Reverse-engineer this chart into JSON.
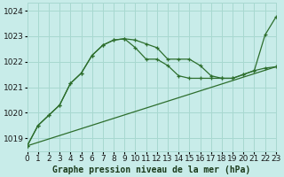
{
  "title": "Graphe pression niveau de la mer (hPa)",
  "bg_color": "#c8ece9",
  "grid_color": "#a8d8d0",
  "line_color": "#2d6e2d",
  "xlim": [
    0,
    23
  ],
  "ylim": [
    1018.5,
    1024.3
  ],
  "yticks": [
    1019,
    1020,
    1021,
    1022,
    1023,
    1024
  ],
  "xticks": [
    0,
    1,
    2,
    3,
    4,
    5,
    6,
    7,
    8,
    9,
    10,
    11,
    12,
    13,
    14,
    15,
    16,
    17,
    18,
    19,
    20,
    21,
    22,
    23
  ],
  "series1_x": [
    0,
    1,
    2,
    3,
    4,
    5,
    6,
    7,
    8,
    9,
    10,
    11,
    12,
    13,
    14,
    15,
    16,
    17,
    18,
    19,
    20,
    21,
    22,
    23
  ],
  "series1_y": [
    1018.7,
    1019.5,
    1019.9,
    1020.3,
    1021.15,
    1021.55,
    1022.25,
    1022.65,
    1022.85,
    1022.9,
    1022.85,
    1022.7,
    1022.55,
    1022.1,
    1022.1,
    1022.1,
    1021.85,
    1021.45,
    1021.35,
    1021.35,
    1021.5,
    1021.65,
    1023.05,
    1023.75
  ],
  "series2_x": [
    0,
    1,
    2,
    3,
    4,
    5,
    6,
    7,
    8,
    9,
    10,
    11,
    12,
    13,
    14,
    15,
    16,
    17,
    18,
    19,
    20,
    21,
    22,
    23
  ],
  "series2_y": [
    1018.7,
    1019.5,
    1019.9,
    1020.3,
    1021.15,
    1021.55,
    1022.25,
    1022.65,
    1022.85,
    1022.9,
    1022.55,
    1022.1,
    1022.1,
    1021.85,
    1021.45,
    1021.35,
    1021.35,
    1021.35,
    1021.35,
    1021.35,
    1021.5,
    1021.65,
    1021.75,
    1021.8
  ],
  "series3_x": [
    0,
    23
  ],
  "series3_y": [
    1018.7,
    1021.8
  ],
  "xlabel_fontsize": 7.0,
  "tick_fontsize": 6.5
}
